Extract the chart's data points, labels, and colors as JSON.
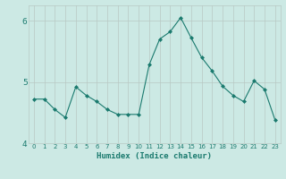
{
  "x": [
    0,
    1,
    2,
    3,
    4,
    5,
    6,
    7,
    8,
    9,
    10,
    11,
    12,
    13,
    14,
    15,
    16,
    17,
    18,
    19,
    20,
    21,
    22,
    23
  ],
  "y": [
    4.72,
    4.72,
    4.55,
    4.42,
    4.92,
    4.78,
    4.68,
    4.55,
    4.47,
    4.47,
    4.47,
    5.28,
    5.7,
    5.82,
    6.05,
    5.72,
    5.4,
    5.18,
    4.93,
    4.78,
    4.68,
    5.02,
    4.88,
    4.38
  ],
  "line_color": "#1a7a6e",
  "marker": "D",
  "marker_size": 2,
  "bg_color": "#cce9e4",
  "grid_color": "#b8c8c4",
  "xlabel": "Humidex (Indice chaleur)",
  "ylim": [
    4.0,
    6.25
  ],
  "yticks": [
    4,
    5,
    6
  ],
  "xticks": [
    0,
    1,
    2,
    3,
    4,
    5,
    6,
    7,
    8,
    9,
    10,
    11,
    12,
    13,
    14,
    15,
    16,
    17,
    18,
    19,
    20,
    21,
    22,
    23
  ],
  "tick_color": "#1a7a6e",
  "axis_label_color": "#1a7a6e",
  "xlabel_fontsize": 6.5,
  "xtick_fontsize": 5.0,
  "ytick_fontsize": 6.5
}
